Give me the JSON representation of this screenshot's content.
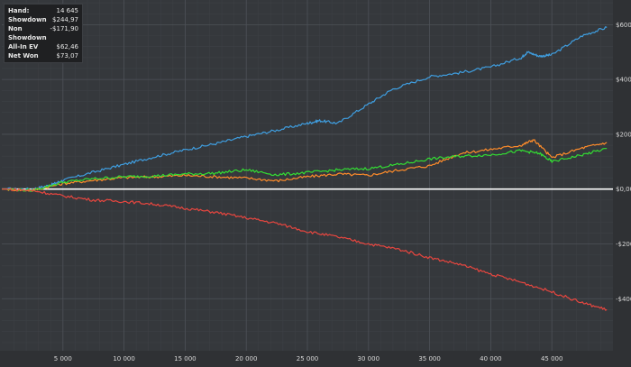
{
  "stats": [
    {
      "label": "Hand:",
      "value": "14 645"
    },
    {
      "label": "Showdown",
      "value": "$244,97"
    },
    {
      "label": "Non Showdown",
      "value": "-$171,90"
    },
    {
      "label": "All-In EV",
      "value": "$62,46"
    },
    {
      "label": "Net Won",
      "value": "$73,07"
    }
  ],
  "chart_data": {
    "type": "line",
    "xlim": [
      0,
      50000
    ],
    "ylim": [
      -590,
      690
    ],
    "x_ticks": [
      5000,
      10000,
      15000,
      20000,
      25000,
      30000,
      35000,
      40000,
      45000
    ],
    "x_tick_labels": [
      "5 000",
      "10 000",
      "15 000",
      "20 000",
      "25 000",
      "30 000",
      "35 000",
      "40 000",
      "45 000"
    ],
    "y_ticks": [
      600,
      400,
      200,
      0,
      -200,
      -400
    ],
    "y_tick_labels": [
      "$600",
      "$400",
      "$200",
      "$0,00",
      "-$200",
      "-$400"
    ],
    "grid": true,
    "zero_line_color": "#ffffff",
    "series": [
      {
        "color": "#3f9ee0",
        "x": [
          0,
          2500,
          4000,
          5000,
          7500,
          10000,
          12500,
          15000,
          17500,
          20000,
          22500,
          25000,
          26000,
          27500,
          30000,
          32000,
          35000,
          37500,
          40000,
          42500,
          43000,
          44000,
          45000,
          47500,
          49500
        ],
        "y": [
          0,
          0,
          15,
          32,
          62,
          90,
          118,
          143,
          166,
          192,
          215,
          240,
          250,
          240,
          310,
          365,
          410,
          425,
          445,
          480,
          500,
          485,
          490,
          560,
          590
        ]
      },
      {
        "color": "#ff8c2a",
        "x": [
          0,
          2500,
          5000,
          7500,
          10000,
          12500,
          15000,
          17500,
          20000,
          22500,
          25000,
          27500,
          30000,
          32500,
          35000,
          37500,
          40000,
          42500,
          43500,
          45000,
          47500,
          49500
        ],
        "y": [
          0,
          -5,
          20,
          32,
          42,
          45,
          50,
          45,
          40,
          30,
          45,
          55,
          50,
          70,
          85,
          130,
          145,
          160,
          180,
          115,
          150,
          170
        ]
      },
      {
        "color": "#33dd33",
        "x": [
          0,
          2500,
          5000,
          7500,
          10000,
          12500,
          15000,
          17500,
          20000,
          22500,
          25000,
          27500,
          30000,
          32500,
          35000,
          37500,
          40000,
          42500,
          44000,
          45000,
          47500,
          49500
        ],
        "y": [
          0,
          -5,
          25,
          38,
          45,
          48,
          55,
          58,
          70,
          52,
          60,
          70,
          75,
          90,
          110,
          120,
          125,
          140,
          130,
          100,
          125,
          148
        ]
      },
      {
        "color": "#e8463f",
        "x": [
          0,
          2500,
          5000,
          7500,
          10000,
          12500,
          15000,
          17500,
          20000,
          22500,
          25000,
          27500,
          30000,
          32500,
          35000,
          37500,
          40000,
          42500,
          45000,
          47500,
          49500
        ],
        "y": [
          0,
          -5,
          -25,
          -40,
          -45,
          -55,
          -70,
          -85,
          -105,
          -125,
          -155,
          -175,
          -200,
          -220,
          -250,
          -275,
          -310,
          -340,
          -375,
          -415,
          -440
        ]
      }
    ]
  }
}
